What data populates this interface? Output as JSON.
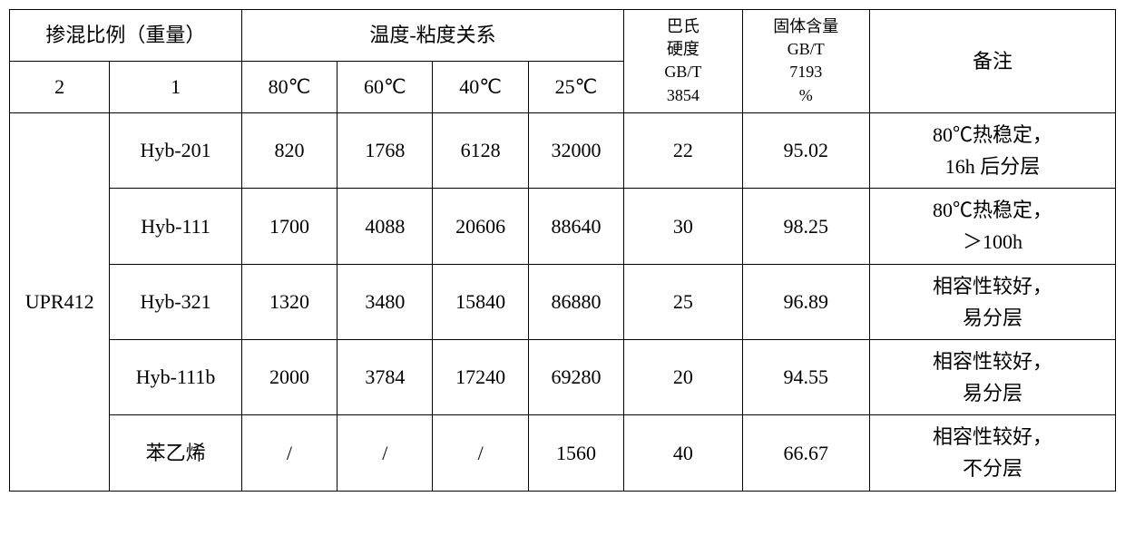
{
  "header": {
    "mix_ratio": "掺混比例（重量）",
    "temp_visc": "温度-粘度关系",
    "barcol": "巴氏\n硬度\nGB/T\n3854",
    "solid": "固体含量\nGB/T\n7193\n%",
    "remark": "备注",
    "two": "2",
    "one": "1",
    "t80": "80℃",
    "t60": "60℃",
    "t40": "40℃",
    "t25": "25℃"
  },
  "group_label": "UPR412",
  "rows": [
    {
      "name": "Hyb-201",
      "v80": "820",
      "v60": "1768",
      "v40": "6128",
      "v25": "32000",
      "hard": "22",
      "solid": "95.02",
      "note": "80℃热稳定，\n16h 后分层"
    },
    {
      "name": "Hyb-111",
      "v80": "1700",
      "v60": "4088",
      "v40": "20606",
      "v25": "88640",
      "hard": "30",
      "solid": "98.25",
      "note": "80℃热稳定，\n＞100h"
    },
    {
      "name": "Hyb-321",
      "v80": "1320",
      "v60": "3480",
      "v40": "15840",
      "v25": "86880",
      "hard": "25",
      "solid": "96.89",
      "note": "相容性较好，\n易分层"
    },
    {
      "name": "Hyb-111b",
      "v80": "2000",
      "v60": "3784",
      "v40": "17240",
      "v25": "69280",
      "hard": "20",
      "solid": "94.55",
      "note": "相容性较好，\n易分层"
    },
    {
      "name": "苯乙烯",
      "v80": "/",
      "v60": "/",
      "v40": "/",
      "v25": "1560",
      "hard": "40",
      "solid": "66.67",
      "note": "相容性较好，\n不分层"
    }
  ],
  "colwidths": [
    "110",
    "145",
    "105",
    "105",
    "105",
    "105",
    "130",
    "140",
    "270"
  ]
}
